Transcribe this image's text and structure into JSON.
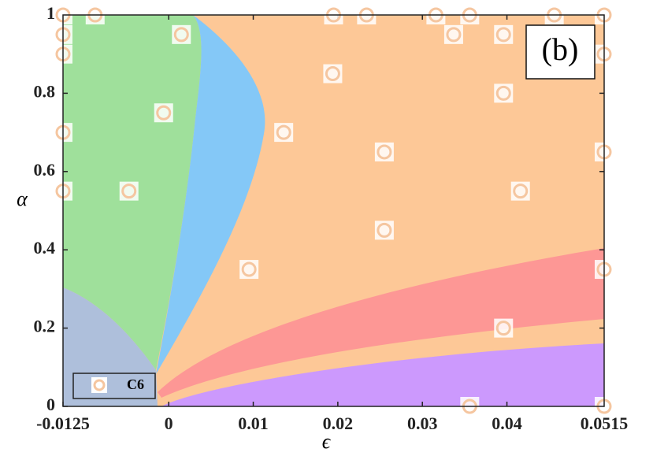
{
  "chart_data": {
    "type": "scatter",
    "xlabel": "ϵ",
    "ylabel": "α",
    "annotation": "(b)",
    "xlim": [
      -0.0125,
      0.0515
    ],
    "ylim": [
      0,
      1
    ],
    "xticks": [
      -0.0125,
      0,
      0.01,
      0.02,
      0.03,
      0.04,
      0.0515
    ],
    "yticks": [
      0,
      0.2,
      0.4,
      0.6,
      0.8,
      1
    ],
    "series": [
      {
        "name": "C6",
        "color": "#f5c6a0",
        "x": [
          -0.0125,
          -0.0087,
          0.0195,
          0.0234,
          0.0316,
          0.0356,
          0.0456,
          0.0515,
          -0.0125,
          0.0015,
          0.0337,
          0.0396,
          -0.0125,
          0.0515,
          0.0194,
          0.0396,
          -0.0006,
          -0.0125,
          0.0136,
          0.0255,
          0.0515,
          -0.0125,
          -0.0047,
          0.0416,
          0.0255,
          0.0095,
          0.0515,
          0.0396,
          0.0356,
          0.0515
        ],
        "values": [
          1,
          1,
          1,
          1,
          1,
          1,
          1,
          1,
          0.95,
          0.95,
          0.95,
          0.95,
          0.9,
          0.9,
          0.85,
          0.8,
          0.75,
          0.7,
          0.7,
          0.65,
          0.65,
          0.55,
          0.55,
          0.55,
          0.45,
          0.35,
          0.35,
          0.2,
          0,
          0
        ]
      }
    ]
  }
}
